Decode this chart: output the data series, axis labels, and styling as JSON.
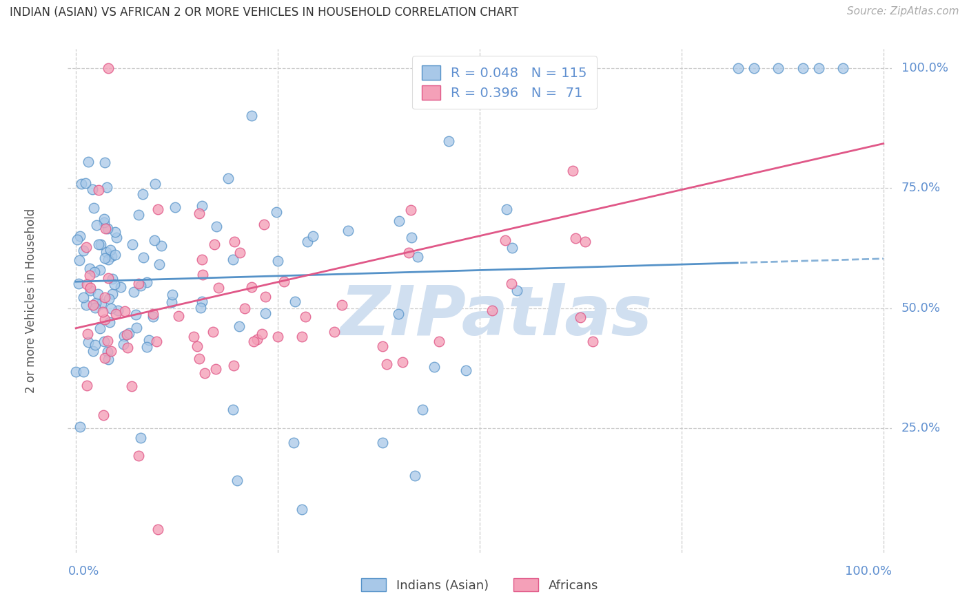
{
  "title": "INDIAN (ASIAN) VS AFRICAN 2 OR MORE VEHICLES IN HOUSEHOLD CORRELATION CHART",
  "source": "Source: ZipAtlas.com",
  "ylabel": "2 or more Vehicles in Household",
  "legend_blue_r": "0.048",
  "legend_blue_n": "115",
  "legend_pink_r": "0.396",
  "legend_pink_n": " 71",
  "legend_label_blue": "Indians (Asian)",
  "legend_label_pink": "Africans",
  "blue_color": "#a8c8e8",
  "pink_color": "#f4a0b8",
  "blue_fill": "#b8d4ee",
  "pink_fill": "#f8b0c4",
  "blue_line_color": "#5592c8",
  "pink_line_color": "#e05888",
  "tick_color": "#6090d0",
  "watermark_color": "#d0dff0",
  "blue_intercept": 0.555,
  "blue_slope": 0.048,
  "pink_intercept": 0.458,
  "pink_slope": 0.385,
  "xlim": [
    0.0,
    1.0
  ],
  "ylim": [
    0.0,
    1.0
  ],
  "yticks": [
    0.25,
    0.5,
    0.75,
    1.0
  ],
  "ytick_labels": [
    "25.0%",
    "50.0%",
    "75.0%",
    "100.0%"
  ],
  "xtick_labels_show": [
    "0.0%",
    "100.0%"
  ]
}
